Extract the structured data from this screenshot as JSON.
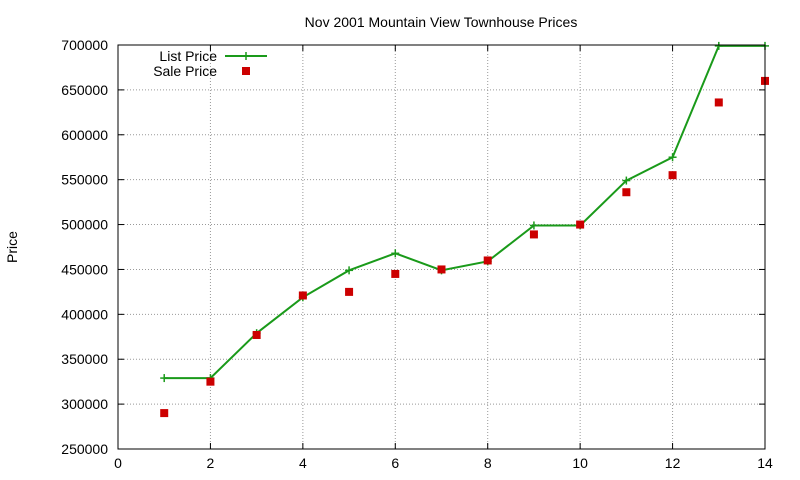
{
  "chart_data": {
    "type": "line",
    "title": "Nov 2001 Mountain View Townhouse Prices",
    "xlabel": "",
    "ylabel": "Price",
    "xlim": [
      0,
      14
    ],
    "ylim": [
      250000,
      700000
    ],
    "xticks": [
      0,
      2,
      4,
      6,
      8,
      10,
      12,
      14
    ],
    "yticks": [
      250000,
      300000,
      350000,
      400000,
      450000,
      500000,
      550000,
      600000,
      650000,
      700000
    ],
    "grid": true,
    "legend_position": "top-left",
    "series": [
      {
        "name": "List Price",
        "style": "line-with-plus-markers",
        "color": "#1a9a1a",
        "x": [
          1,
          2,
          3,
          4,
          5,
          6,
          7,
          8,
          9,
          10,
          11,
          12,
          13,
          14
        ],
        "values": [
          329000,
          329000,
          379000,
          419000,
          449000,
          468000,
          449000,
          459000,
          499000,
          499000,
          549000,
          575000,
          699000,
          699000
        ]
      },
      {
        "name": "Sale Price",
        "style": "square-markers",
        "color": "#cc0000",
        "x": [
          1,
          2,
          3,
          4,
          5,
          6,
          7,
          8,
          9,
          10,
          11,
          12,
          13,
          14
        ],
        "values": [
          290000,
          325000,
          377000,
          421000,
          425000,
          445000,
          450000,
          460000,
          489000,
          500000,
          536000,
          555000,
          636000,
          660000
        ]
      }
    ]
  }
}
